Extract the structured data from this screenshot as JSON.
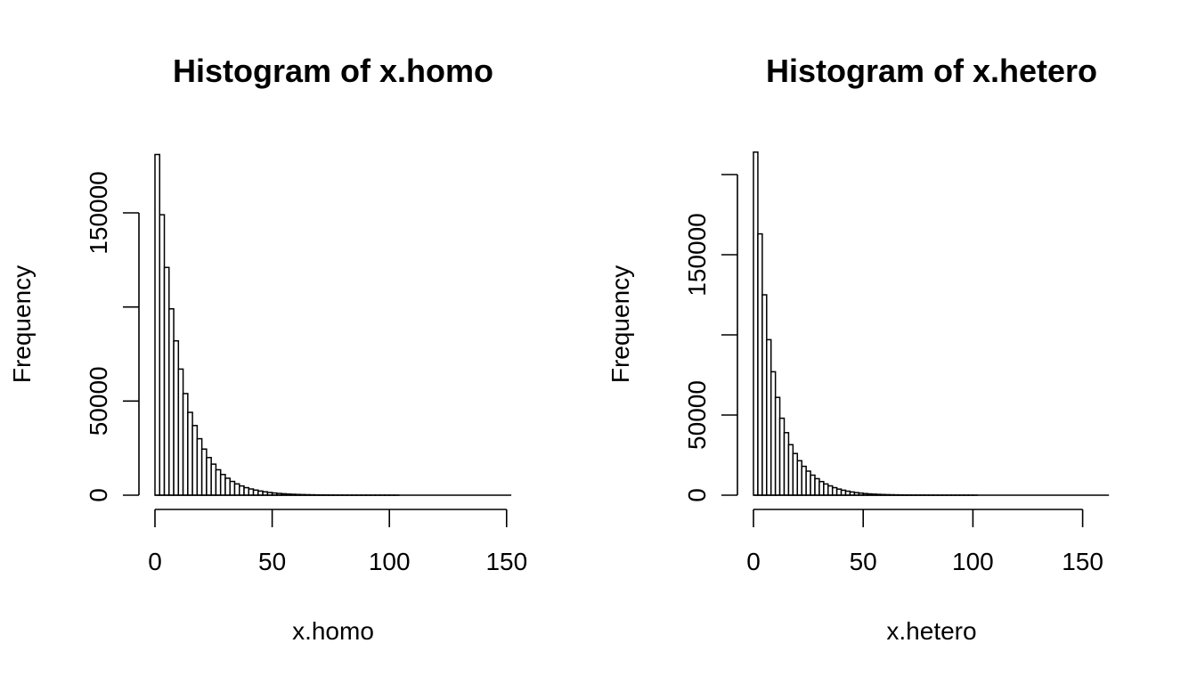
{
  "chart_data": [
    {
      "type": "bar",
      "title": "Histogram of x.homo",
      "xlabel": "x.homo",
      "ylabel": "Frequency",
      "bin_width": 2,
      "xlim": [
        0,
        150
      ],
      "ylim": [
        0,
        150000
      ],
      "x_ticks": [
        0,
        50,
        100,
        150
      ],
      "y_ticks": [
        0,
        50000,
        150000
      ],
      "bin_starts": [
        0,
        2,
        4,
        6,
        8,
        10,
        12,
        14,
        16,
        18,
        20,
        22,
        24,
        26,
        28,
        30,
        32,
        34,
        36,
        38,
        40,
        42,
        44,
        46,
        48,
        50,
        52,
        54,
        56,
        58,
        60,
        62,
        64,
        66,
        68,
        70,
        72,
        74,
        76,
        78,
        80,
        82,
        84,
        86,
        88,
        90,
        92,
        94,
        96,
        98,
        100,
        102,
        104,
        106,
        108,
        110,
        112,
        114,
        116,
        118,
        120,
        122,
        124,
        126,
        128,
        130,
        132,
        134,
        136,
        138,
        140,
        142,
        144,
        146,
        148,
        150
      ],
      "values": [
        181000,
        149000,
        121000,
        99000,
        82000,
        67000,
        54000,
        44000,
        37000,
        30000,
        24500,
        20000,
        16500,
        13500,
        11000,
        9000,
        7300,
        6000,
        4900,
        4000,
        3300,
        2700,
        2200,
        1800,
        1450,
        1150,
        930,
        750,
        600,
        480,
        390,
        310,
        250,
        200,
        160,
        130,
        100,
        80,
        65,
        50,
        40,
        30,
        25,
        20,
        15,
        12,
        10,
        8,
        6,
        5,
        4,
        3,
        2,
        2,
        1,
        1,
        1,
        1,
        0,
        0,
        0,
        0,
        0,
        0,
        0,
        0,
        0,
        0,
        0,
        0,
        0,
        0,
        0,
        0,
        0,
        0
      ]
    },
    {
      "type": "bar",
      "title": "Histogram of x.hetero",
      "xlabel": "x.hetero",
      "ylabel": "Frequency",
      "bin_width": 2,
      "xlim": [
        0,
        160
      ],
      "ylim": [
        0,
        200000
      ],
      "x_ticks": [
        0,
        50,
        100,
        150
      ],
      "y_ticks": [
        0,
        50000,
        150000
      ],
      "bin_starts": [
        0,
        2,
        4,
        6,
        8,
        10,
        12,
        14,
        16,
        18,
        20,
        22,
        24,
        26,
        28,
        30,
        32,
        34,
        36,
        38,
        40,
        42,
        44,
        46,
        48,
        50,
        52,
        54,
        56,
        58,
        60,
        62,
        64,
        66,
        68,
        70,
        72,
        74,
        76,
        78,
        80,
        82,
        84,
        86,
        88,
        90,
        92,
        94,
        96,
        98,
        100,
        102,
        104,
        106,
        108,
        110,
        112,
        114,
        116,
        118,
        120,
        122,
        124,
        126,
        128,
        130,
        132,
        134,
        136,
        138,
        140,
        142,
        144,
        146,
        148,
        150,
        152,
        154,
        156,
        158,
        160
      ],
      "values": [
        214000,
        163000,
        125000,
        97000,
        77000,
        61000,
        48000,
        39000,
        31500,
        26000,
        21500,
        18000,
        15000,
        12500,
        10300,
        8500,
        7000,
        5800,
        4700,
        3800,
        3100,
        2500,
        2000,
        1600,
        1300,
        1000,
        800,
        640,
        510,
        410,
        330,
        260,
        210,
        170,
        135,
        105,
        85,
        68,
        54,
        43,
        34,
        27,
        21,
        17,
        13,
        10,
        8,
        6,
        5,
        4,
        3,
        2,
        2,
        1,
        1,
        1,
        0,
        0,
        0,
        0,
        0,
        0,
        0,
        0,
        0,
        0,
        0,
        0,
        0,
        0,
        0,
        0,
        0,
        0,
        0,
        0,
        0,
        0,
        0,
        0,
        0
      ]
    }
  ]
}
